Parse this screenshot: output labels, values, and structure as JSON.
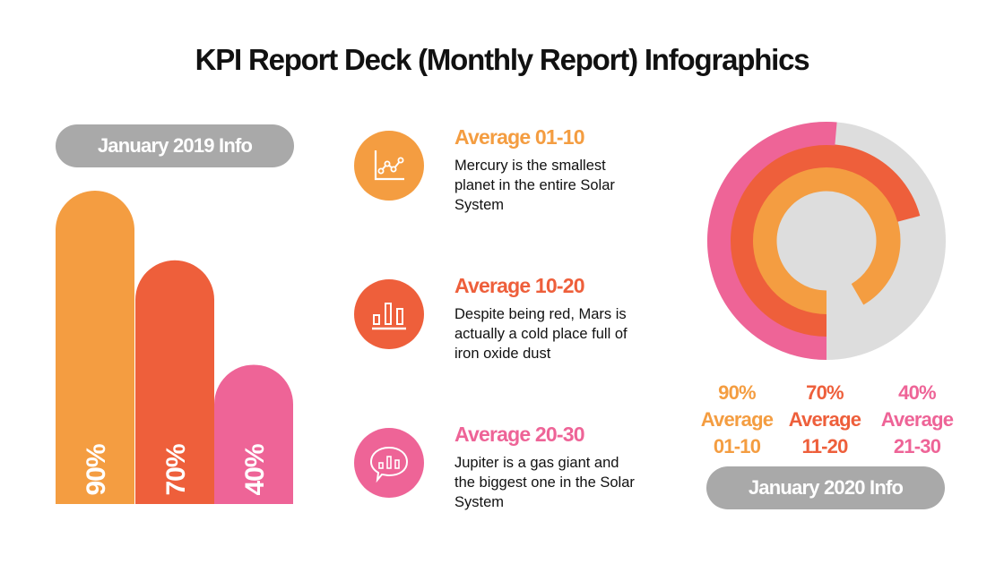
{
  "title": "KPI Report Deck (Monthly Report) Infographics",
  "colors": {
    "orange": "#F49D41",
    "red": "#EE5F3B",
    "pink": "#EE6497",
    "grey_pill": "#A9A9A9",
    "ring_track": "#DDDDDD"
  },
  "left_panel": {
    "label": "January 2019 Info"
  },
  "right_panel": {
    "label": "January 2020 Info"
  },
  "items": [
    {
      "title": "Average 01-10",
      "description": "Mercury is the smallest planet in the entire Solar System",
      "icon": "line-chart-icon",
      "color": "#F49D41"
    },
    {
      "title": "Average 10-20",
      "description": "Despite being red, Mars is actually a cold place full of iron oxide dust",
      "icon": "bar-chart-icon",
      "color": "#EE5F3B"
    },
    {
      "title": "Average 20-30",
      "description": "Jupiter is a gas giant and the biggest one in the Solar System",
      "icon": "chat-bar-chart-icon",
      "color": "#EE6497"
    }
  ],
  "stats": [
    {
      "value": "90%",
      "label1": "Average",
      "label2": "01-10",
      "color": "#F49D41"
    },
    {
      "value": "70%",
      "label1": "Average",
      "label2": "11-20",
      "color": "#EE5F3B"
    },
    {
      "value": "40%",
      "label1": "Average",
      "label2": "21-30",
      "color": "#EE6497"
    }
  ],
  "chart_data": [
    {
      "type": "bar",
      "title": "January 2019 Info",
      "categories": [
        "Average 01-10",
        "Average 10-20",
        "Average 20-30"
      ],
      "values": [
        90,
        70,
        40
      ],
      "labels": [
        "90%",
        "70%",
        "40%"
      ],
      "colors": [
        "#F49D41",
        "#EE5F3B",
        "#EE6497"
      ],
      "ylim": [
        0,
        100
      ],
      "grid": false
    },
    {
      "type": "radial-bar",
      "title": "January 2020 Info",
      "categories": [
        "Average 01-10",
        "Average 11-20",
        "Average 21-30"
      ],
      "values": [
        90,
        70,
        40
      ],
      "colors": [
        "#F49D41",
        "#EE5F3B",
        "#EE6497"
      ]
    }
  ]
}
